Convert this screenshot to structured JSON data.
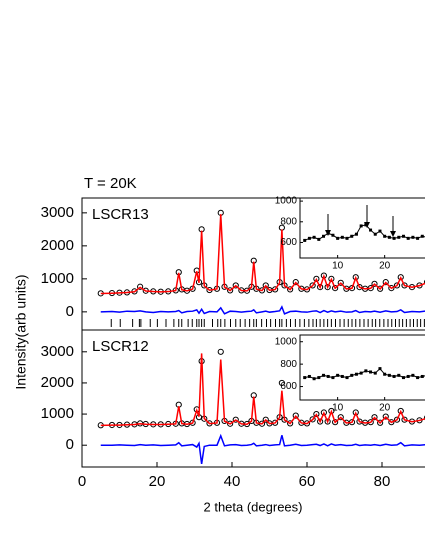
{
  "chart_data": [
    {
      "type": "line",
      "title": "T = 20K",
      "label": "LSCR13",
      "ylabel": "Intensity(arb units)",
      "xlim": [
        0,
        92
      ],
      "ylim": [
        -550,
        3450
      ],
      "yticks": [
        0,
        1000,
        2000,
        3000
      ],
      "x": [
        5,
        8,
        10,
        12,
        14,
        15.5,
        17,
        19,
        21,
        23,
        25,
        25.8,
        26.6,
        28,
        29.5,
        30.6,
        31.2,
        31.9,
        32.6,
        34,
        36,
        37,
        38,
        39.5,
        41,
        42.5,
        44,
        45.2,
        45.8,
        46.5,
        48,
        49,
        50,
        51.5,
        52.7,
        53.3,
        54,
        55.5,
        57,
        58.5,
        60,
        61.5,
        62.5,
        63.5,
        64.5,
        65.5,
        66.5,
        67.5,
        69,
        70.5,
        72,
        73,
        74,
        75.5,
        77,
        78,
        79.5,
        81,
        82.5,
        84,
        85,
        86,
        88,
        90,
        92
      ],
      "series": [
        {
          "color": "#000000",
          "style": "markers",
          "values": [
            560,
            570,
            580,
            590,
            620,
            760,
            640,
            620,
            610,
            620,
            650,
            1200,
            680,
            640,
            700,
            1250,
            900,
            2500,
            800,
            660,
            700,
            3000,
            760,
            650,
            800,
            650,
            640,
            760,
            1550,
            700,
            650,
            800,
            660,
            680,
            900,
            2550,
            800,
            680,
            900,
            700,
            680,
            800,
            1000,
            750,
            1100,
            750,
            1000,
            720,
            880,
            700,
            720,
            1050,
            750,
            700,
            720,
            850,
            700,
            900,
            720,
            800,
            1050,
            800,
            750,
            800,
            900
          ]
        },
        {
          "color": "#ff0000",
          "style": "line",
          "values": [
            555,
            565,
            575,
            585,
            610,
            740,
            630,
            615,
            605,
            615,
            645,
            1180,
            670,
            635,
            690,
            1230,
            880,
            2460,
            790,
            655,
            695,
            2960,
            750,
            645,
            790,
            645,
            635,
            750,
            1520,
            690,
            645,
            790,
            655,
            675,
            880,
            2500,
            790,
            675,
            885,
            695,
            675,
            790,
            980,
            740,
            1080,
            745,
            985,
            715,
            870,
            695,
            715,
            1030,
            745,
            695,
            715,
            840,
            695,
            885,
            715,
            795,
            1030,
            795,
            745,
            795,
            885
          ]
        },
        {
          "color": "#0000ff",
          "style": "line",
          "values": [
            0,
            10,
            -10,
            20,
            10,
            30,
            0,
            -20,
            10,
            0,
            10,
            40,
            -30,
            10,
            20,
            60,
            -40,
            80,
            -50,
            10,
            0,
            120,
            -60,
            20,
            10,
            -10,
            10,
            20,
            60,
            -30,
            0,
            20,
            -10,
            10,
            30,
            150,
            -60,
            10,
            20,
            0,
            -10,
            20,
            30,
            -20,
            40,
            -10,
            30,
            0,
            20,
            -10,
            0,
            40,
            -20,
            10,
            0,
            20,
            -10,
            30,
            0,
            10,
            60,
            -20,
            10,
            0,
            30
          ]
        }
      ],
      "tick_color": "#000000",
      "tick_positions": [
        7.8,
        10.2,
        13.5,
        15.3,
        15.7,
        18.2,
        20.1,
        22.4,
        24.5,
        25.8,
        26.6,
        28.3,
        29.4,
        30.6,
        31.2,
        31.9,
        32.6,
        34.8,
        36.2,
        37,
        38.1,
        39.6,
        41,
        42.2,
        43.5,
        44.7,
        45.8,
        46.5,
        47.9,
        49.2,
        50.3,
        51.6,
        52.7,
        53.3,
        54.5,
        55.6,
        56.9,
        58.1,
        59.3,
        60.5,
        61.6,
        62.5,
        63.5,
        64.5,
        65.5,
        66.5,
        67.6,
        68.8,
        69.9,
        71,
        72,
        73,
        74.1,
        75.2,
        76.3,
        77.4,
        78.3,
        79.4,
        80.5,
        81.6,
        82.6,
        83.6,
        84.6,
        85.5,
        86.5,
        87.5,
        88.4,
        89.4,
        90.3,
        91.3
      ]
    },
    {
      "type": "line",
      "label": "LSCR12",
      "xlabel": "2 theta (degrees)",
      "xlim": [
        0,
        92
      ],
      "ylim": [
        -700,
        3700
      ],
      "xticks": [
        0,
        20,
        40,
        60,
        80
      ],
      "yticks": [
        0,
        1000,
        2000,
        3000
      ],
      "x": [
        5,
        8,
        10,
        12,
        14,
        15.5,
        17,
        19,
        21,
        23,
        25,
        25.8,
        26.6,
        28,
        29.5,
        30.6,
        31.2,
        31.9,
        32.6,
        34,
        36,
        37,
        38,
        39.5,
        41,
        42.5,
        44,
        45.2,
        45.8,
        46.5,
        48,
        49,
        50,
        51.5,
        52.7,
        53.3,
        54,
        55.5,
        57,
        58.5,
        60,
        61.5,
        62.5,
        63.5,
        64.5,
        65.5,
        66.5,
        67.5,
        69,
        70.5,
        72,
        73,
        74,
        75.5,
        77,
        78,
        79.5,
        81,
        82.5,
        84,
        85,
        86,
        88,
        90,
        92
      ],
      "series": [
        {
          "color": "#000000",
          "style": "markers",
          "values": [
            640,
            650,
            650,
            660,
            670,
            700,
            680,
            670,
            670,
            680,
            690,
            1300,
            700,
            680,
            720,
            1150,
            900,
            2700,
            850,
            700,
            720,
            3000,
            780,
            690,
            820,
            690,
            680,
            780,
            1600,
            720,
            690,
            820,
            700,
            720,
            900,
            2000,
            820,
            700,
            950,
            720,
            700,
            830,
            1000,
            760,
            1050,
            760,
            1100,
            740,
            900,
            720,
            740,
            1050,
            760,
            720,
            740,
            900,
            720,
            920,
            740,
            820,
            1100,
            820,
            760,
            800,
            880
          ]
        },
        {
          "color": "#ff0000",
          "style": "line",
          "values": [
            635,
            645,
            645,
            655,
            665,
            690,
            675,
            665,
            665,
            675,
            685,
            1250,
            695,
            675,
            710,
            1120,
            920,
            2950,
            860,
            695,
            715,
            2750,
            770,
            685,
            810,
            685,
            675,
            770,
            1560,
            715,
            685,
            810,
            695,
            715,
            890,
            1750,
            810,
            695,
            930,
            715,
            695,
            820,
            980,
            755,
            1030,
            755,
            1080,
            735,
            890,
            715,
            735,
            1030,
            755,
            715,
            735,
            885,
            715,
            905,
            735,
            815,
            1080,
            815,
            755,
            795,
            870
          ]
        },
        {
          "color": "#0000ff",
          "style": "line",
          "values": [
            0,
            0,
            10,
            0,
            -10,
            20,
            0,
            10,
            -10,
            0,
            10,
            80,
            -20,
            0,
            20,
            -60,
            60,
            -600,
            -40,
            0,
            0,
            300,
            -20,
            10,
            20,
            -10,
            0,
            20,
            60,
            -20,
            0,
            20,
            -10,
            10,
            20,
            320,
            -20,
            0,
            30,
            -10,
            0,
            20,
            30,
            -10,
            40,
            -20,
            40,
            0,
            20,
            -10,
            0,
            30,
            -10,
            10,
            0,
            20,
            -10,
            30,
            0,
            10,
            80,
            -20,
            10,
            0,
            20
          ]
        }
      ]
    },
    {
      "type": "line",
      "xlim": [
        2,
        29
      ],
      "ylim": [
        450,
        1030
      ],
      "xticks": [
        10,
        20
      ],
      "yticks": [
        600,
        800,
        1000
      ],
      "x": [
        3,
        4,
        5,
        6,
        7,
        8,
        9,
        10,
        11,
        12,
        13,
        14,
        15,
        16,
        17,
        18,
        19,
        20,
        21,
        22,
        23,
        24,
        25,
        26,
        27,
        28,
        29
      ],
      "series": [
        {
          "color": "#000000",
          "style": "line+markers",
          "values": [
            620,
            640,
            650,
            630,
            660,
            690,
            670,
            640,
            650,
            640,
            660,
            680,
            760,
            770,
            720,
            680,
            710,
            660,
            650,
            640,
            650,
            660,
            640,
            650,
            640,
            660,
            650
          ]
        }
      ]
    },
    {
      "type": "line",
      "xlim": [
        2,
        29
      ],
      "ylim": [
        480,
        1060
      ],
      "xticks": [
        10,
        20
      ],
      "yticks": [
        600,
        800,
        1000
      ],
      "x": [
        3,
        4,
        5,
        6,
        7,
        8,
        9,
        10,
        11,
        12,
        13,
        14,
        15,
        16,
        17,
        18,
        19,
        20,
        21,
        22,
        23,
        24,
        25,
        26,
        27,
        28,
        29
      ],
      "series": [
        {
          "color": "#000000",
          "style": "line+markers",
          "values": [
            680,
            690,
            670,
            680,
            700,
            690,
            680,
            700,
            690,
            680,
            700,
            710,
            720,
            740,
            730,
            720,
            760,
            710,
            700,
            690,
            700,
            680,
            690,
            700,
            680,
            690,
            700
          ]
        }
      ]
    }
  ]
}
